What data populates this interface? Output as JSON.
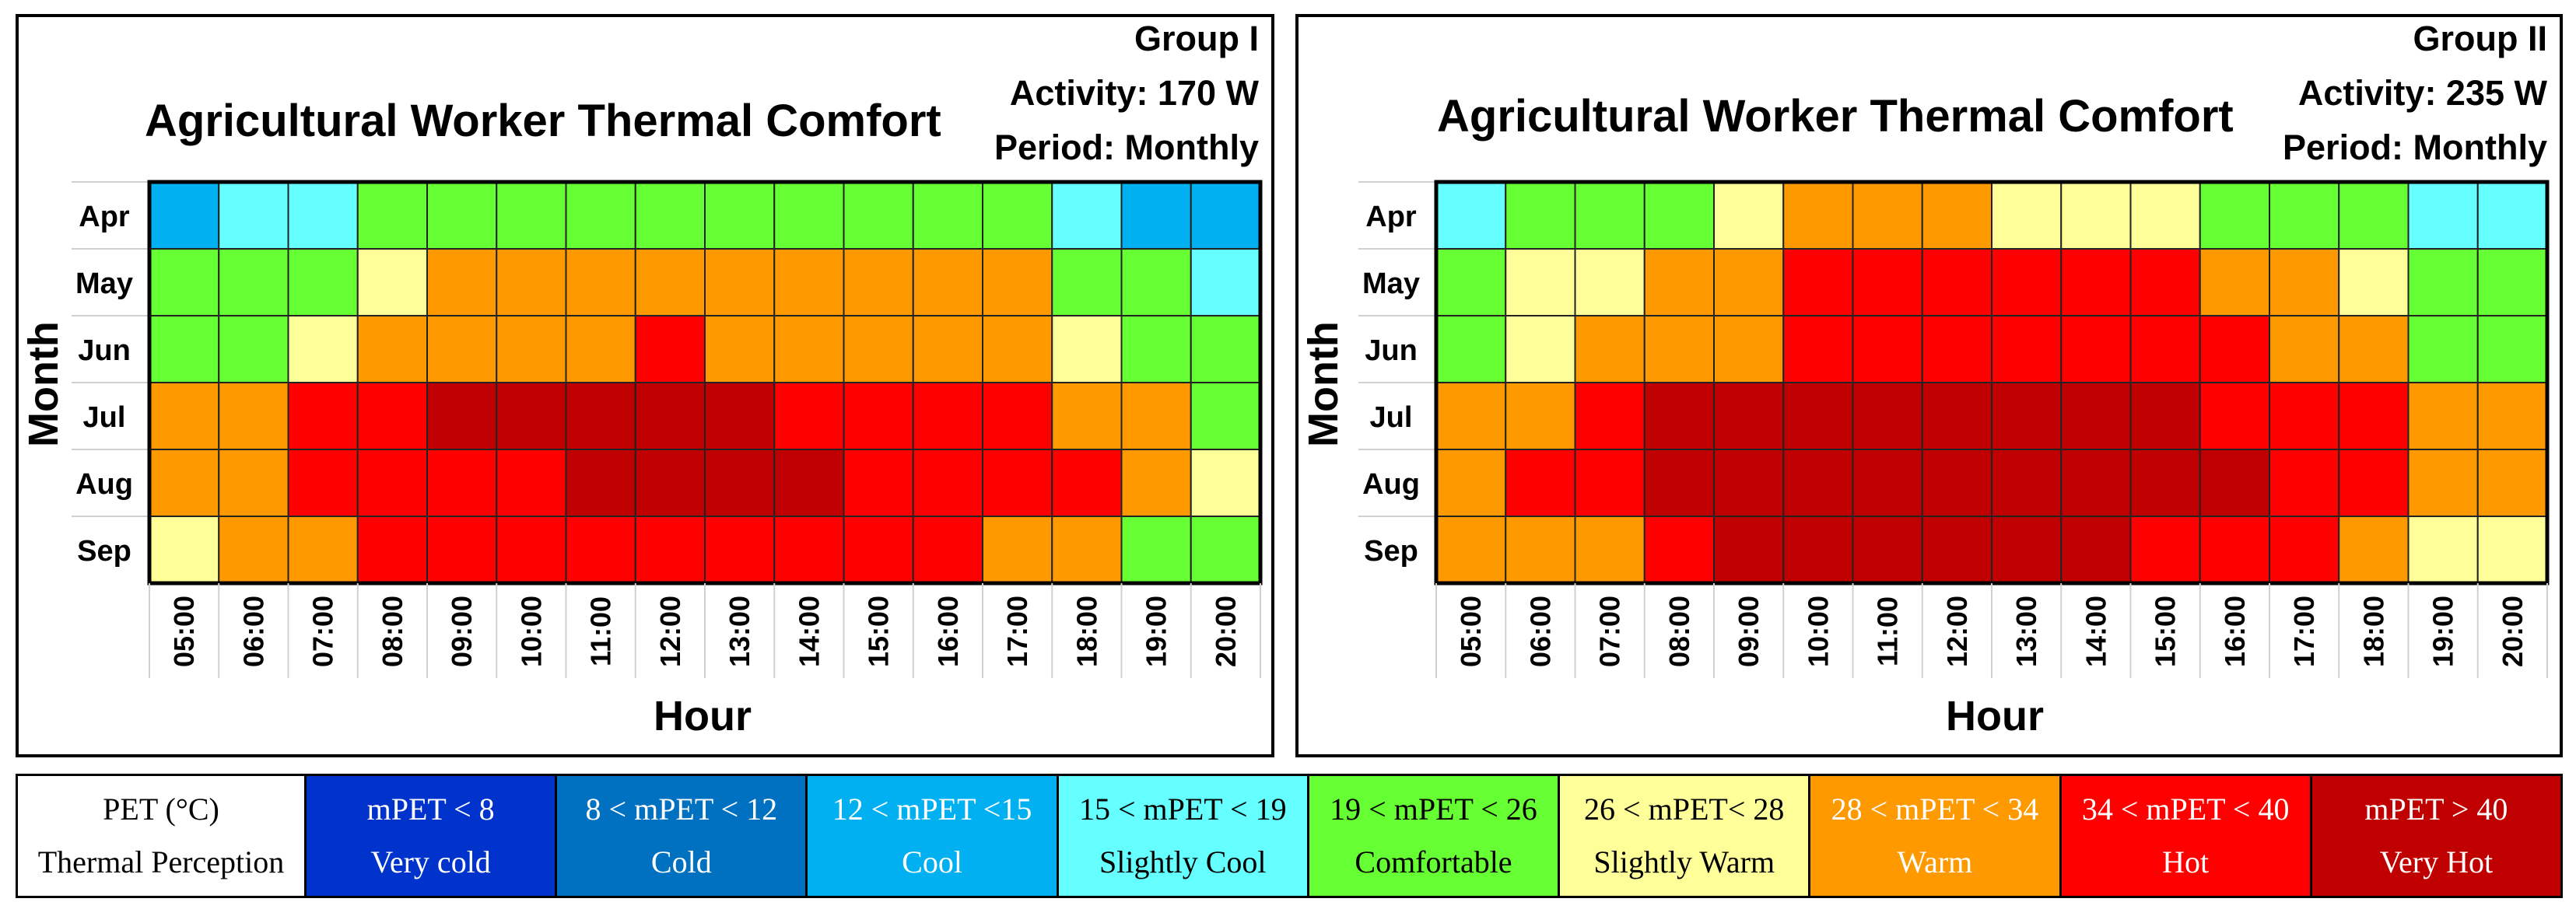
{
  "chart_data": [
    {
      "type": "heatmap",
      "title": "Agricultural Worker Thermal Comfort",
      "group": "Group I",
      "activity": "Activity: 170 W",
      "period": "Period: Monthly",
      "xlabel": "Hour",
      "ylabel": "Month",
      "x": [
        "05:00",
        "06:00",
        "07:00",
        "08:00",
        "09:00",
        "10:00",
        "11:00",
        "12:00",
        "13:00",
        "14:00",
        "15:00",
        "16:00",
        "17:00",
        "18:00",
        "19:00",
        "20:00"
      ],
      "y": [
        "Apr",
        "May",
        "Jun",
        "Jul",
        "Aug",
        "Sep"
      ],
      "values": [
        [
          "Cool",
          "Slightly Cool",
          "Slightly Cool",
          "Comfortable",
          "Comfortable",
          "Comfortable",
          "Comfortable",
          "Comfortable",
          "Comfortable",
          "Comfortable",
          "Comfortable",
          "Comfortable",
          "Comfortable",
          "Slightly Cool",
          "Cool",
          "Cool"
        ],
        [
          "Comfortable",
          "Comfortable",
          "Comfortable",
          "Slightly Warm",
          "Warm",
          "Warm",
          "Warm",
          "Warm",
          "Warm",
          "Warm",
          "Warm",
          "Warm",
          "Warm",
          "Comfortable",
          "Comfortable",
          "Slightly Cool"
        ],
        [
          "Comfortable",
          "Comfortable",
          "Slightly Warm",
          "Warm",
          "Warm",
          "Warm",
          "Warm",
          "Hot",
          "Warm",
          "Warm",
          "Warm",
          "Warm",
          "Warm",
          "Slightly Warm",
          "Comfortable",
          "Comfortable"
        ],
        [
          "Warm",
          "Warm",
          "Hot",
          "Hot",
          "Very Hot",
          "Very Hot",
          "Very Hot",
          "Very Hot",
          "Very Hot",
          "Hot",
          "Hot",
          "Hot",
          "Hot",
          "Warm",
          "Warm",
          "Comfortable"
        ],
        [
          "Warm",
          "Warm",
          "Hot",
          "Hot",
          "Hot",
          "Hot",
          "Very Hot",
          "Very Hot",
          "Very Hot",
          "Very Hot",
          "Hot",
          "Hot",
          "Hot",
          "Hot",
          "Warm",
          "Slightly Warm"
        ],
        [
          "Slightly Warm",
          "Warm",
          "Warm",
          "Hot",
          "Hot",
          "Hot",
          "Hot",
          "Hot",
          "Hot",
          "Hot",
          "Hot",
          "Hot",
          "Warm",
          "Warm",
          "Comfortable",
          "Comfortable"
        ]
      ]
    },
    {
      "type": "heatmap",
      "title": "Agricultural Worker Thermal Comfort",
      "group": "Group II",
      "activity": "Activity: 235 W",
      "period": "Period: Monthly",
      "xlabel": "Hour",
      "ylabel": "Month",
      "x": [
        "05:00",
        "06:00",
        "07:00",
        "08:00",
        "09:00",
        "10:00",
        "11:00",
        "12:00",
        "13:00",
        "14:00",
        "15:00",
        "16:00",
        "17:00",
        "18:00",
        "19:00",
        "20:00"
      ],
      "y": [
        "Apr",
        "May",
        "Jun",
        "Jul",
        "Aug",
        "Sep"
      ],
      "values": [
        [
          "Slightly Cool",
          "Comfortable",
          "Comfortable",
          "Comfortable",
          "Slightly Warm",
          "Warm",
          "Warm",
          "Warm",
          "Slightly Warm",
          "Slightly Warm",
          "Slightly Warm",
          "Comfortable",
          "Comfortable",
          "Comfortable",
          "Slightly Cool",
          "Slightly Cool"
        ],
        [
          "Comfortable",
          "Slightly Warm",
          "Slightly Warm",
          "Warm",
          "Warm",
          "Hot",
          "Hot",
          "Hot",
          "Hot",
          "Hot",
          "Hot",
          "Warm",
          "Warm",
          "Slightly Warm",
          "Comfortable",
          "Comfortable"
        ],
        [
          "Comfortable",
          "Slightly Warm",
          "Warm",
          "Warm",
          "Warm",
          "Hot",
          "Hot",
          "Hot",
          "Hot",
          "Hot",
          "Hot",
          "Hot",
          "Warm",
          "Warm",
          "Comfortable",
          "Comfortable"
        ],
        [
          "Warm",
          "Warm",
          "Hot",
          "Very Hot",
          "Very Hot",
          "Very Hot",
          "Very Hot",
          "Very Hot",
          "Very Hot",
          "Very Hot",
          "Very Hot",
          "Hot",
          "Hot",
          "Hot",
          "Warm",
          "Warm"
        ],
        [
          "Warm",
          "Hot",
          "Hot",
          "Very Hot",
          "Very Hot",
          "Very Hot",
          "Very Hot",
          "Very Hot",
          "Very Hot",
          "Very Hot",
          "Very Hot",
          "Very Hot",
          "Hot",
          "Hot",
          "Warm",
          "Warm"
        ],
        [
          "Warm",
          "Warm",
          "Warm",
          "Hot",
          "Very Hot",
          "Very Hot",
          "Very Hot",
          "Very Hot",
          "Very Hot",
          "Very Hot",
          "Hot",
          "Hot",
          "Hot",
          "Warm",
          "Slightly Warm",
          "Slightly Warm"
        ]
      ]
    }
  ],
  "legend": {
    "header": [
      "PET (°C)",
      "Thermal Perception"
    ],
    "items": [
      {
        "range": "mPET < 8",
        "label": "Very cold",
        "key": "Very cold",
        "color": "#0033cc",
        "text_color": "#ffffff"
      },
      {
        "range": "8 < mPET < 12",
        "label": "Cold",
        "key": "Cold",
        "color": "#0070c0",
        "text_color": "#ffffff"
      },
      {
        "range": "12 < mPET <15",
        "label": "Cool",
        "key": "Cool",
        "color": "#00b0f0",
        "text_color": "#ffffff"
      },
      {
        "range": "15 < mPET < 19",
        "label": "Slightly Cool",
        "key": "Slightly Cool",
        "color": "#66ffff",
        "text_color": "#000000"
      },
      {
        "range": "19 < mPET < 26",
        "label": "Comfortable",
        "key": "Comfortable",
        "color": "#66ff33",
        "text_color": "#000000"
      },
      {
        "range": "26 < mPET< 28",
        "label": "Slightly Warm",
        "key": "Slightly Warm",
        "color": "#ffff99",
        "text_color": "#000000"
      },
      {
        "range": "28 < mPET < 34",
        "label": "Warm",
        "key": "Warm",
        "color": "#ff9900",
        "text_color": "#ffffff"
      },
      {
        "range": "34 < mPET < 40",
        "label": "Hot",
        "key": "Hot",
        "color": "#ff0000",
        "text_color": "#ffffff"
      },
      {
        "range": "mPET > 40",
        "label": "Very Hot",
        "key": "Very Hot",
        "color": "#c00000",
        "text_color": "#ffffff"
      }
    ]
  }
}
